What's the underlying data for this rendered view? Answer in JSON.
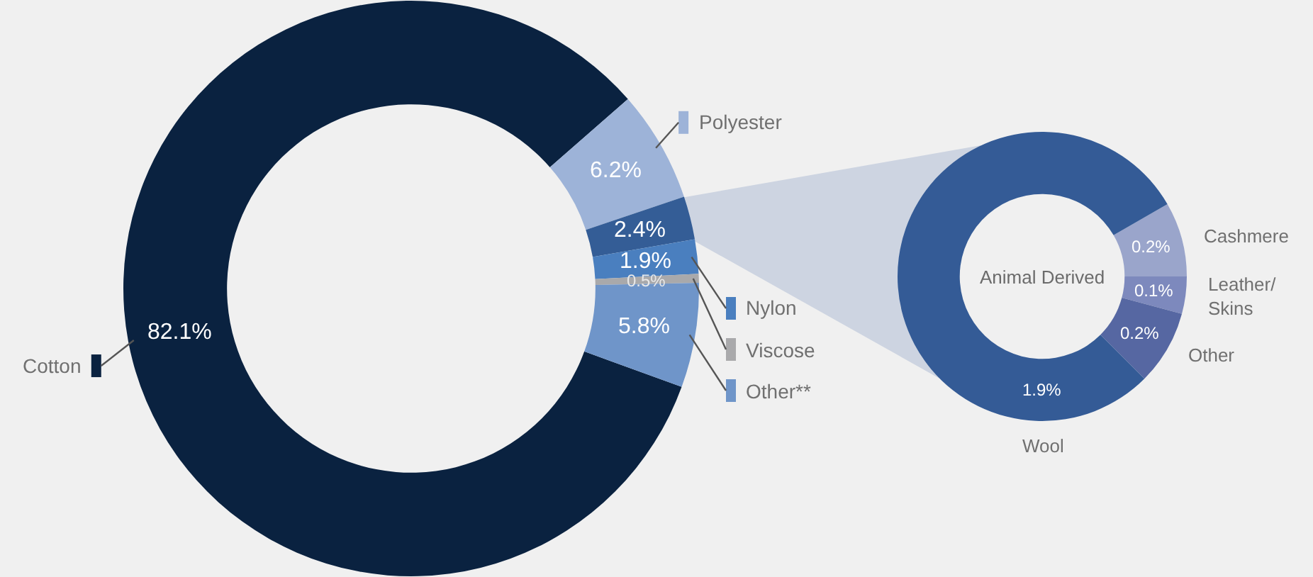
{
  "chart_data": [
    {
      "type": "donut",
      "categories": [
        "Cotton",
        "Polyester",
        null,
        "Nylon",
        "Viscose",
        "Other**"
      ],
      "values": [
        82.1,
        6.2,
        2.4,
        1.9,
        0.5,
        5.8
      ],
      "value_labels": [
        "82.1%",
        "6.2%",
        "2.4%",
        "1.9%",
        "0.5%",
        "5.8%"
      ],
      "colors": [
        "#0a2240",
        "#9db3d8",
        "#345d96",
        "#4a7fbf",
        "#a9a9ab",
        "#6f95c9"
      ],
      "legend": "right"
    },
    {
      "type": "donut",
      "title": "Animal Derived",
      "categories": [
        "Cashmere",
        "Leather/\nSkins",
        "Other",
        "Wool"
      ],
      "values": [
        0.2,
        0.1,
        0.2,
        1.9
      ],
      "value_labels": [
        "0.2%",
        "0.1%",
        "0.2%",
        "1.9%"
      ],
      "colors": [
        "#9aa5cb",
        "#7d89bd",
        "#5667a2",
        "#345b96"
      ]
    }
  ]
}
